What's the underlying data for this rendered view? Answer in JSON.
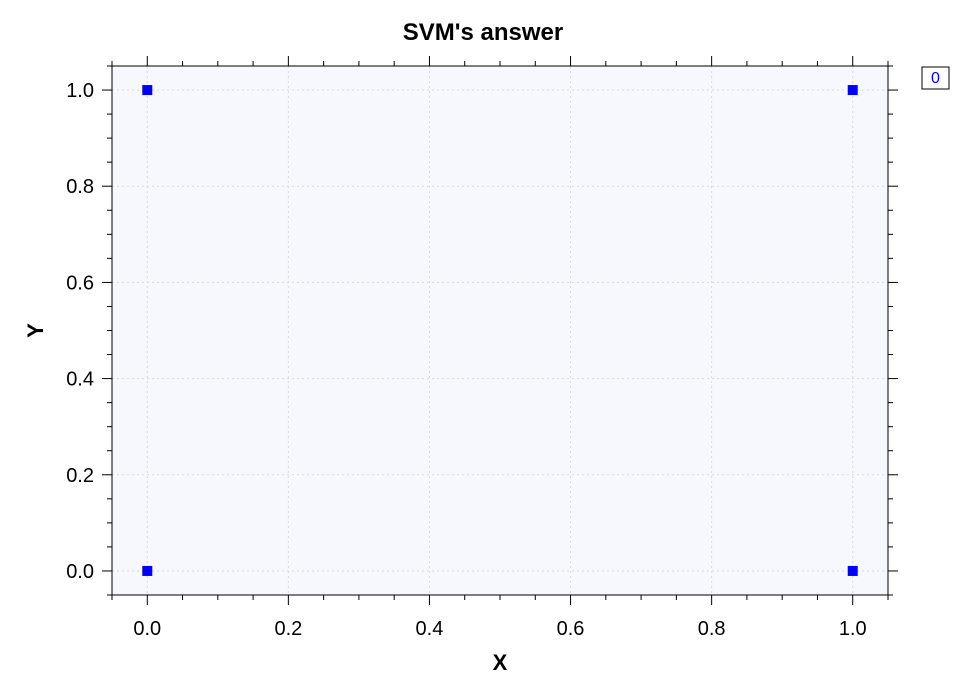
{
  "colors": {
    "plot_background": "#f7f8fe",
    "grid": "#d9d9d9",
    "axis": "#000000",
    "series": "#0000ff"
  },
  "chart_data": {
    "type": "scatter",
    "title": "SVM's answer",
    "xlabel": "X",
    "ylabel": "Y",
    "xlim": [
      -0.05,
      1.05
    ],
    "ylim": [
      -0.05,
      1.05
    ],
    "x_ticks": [
      "0.0",
      "0.2",
      "0.4",
      "0.6",
      "0.8",
      "1.0"
    ],
    "y_ticks": [
      "0.0",
      "0.2",
      "0.4",
      "0.6",
      "0.8",
      "1.0"
    ],
    "grid": true,
    "legend_position": "top-right, outside plot",
    "series": [
      {
        "name": "0",
        "color": "#0000ff",
        "marker": "square",
        "points": [
          {
            "x": 0.0,
            "y": 1.0
          },
          {
            "x": 1.0,
            "y": 1.0
          },
          {
            "x": 0.0,
            "y": 0.0
          },
          {
            "x": 1.0,
            "y": 0.0
          }
        ]
      }
    ]
  }
}
